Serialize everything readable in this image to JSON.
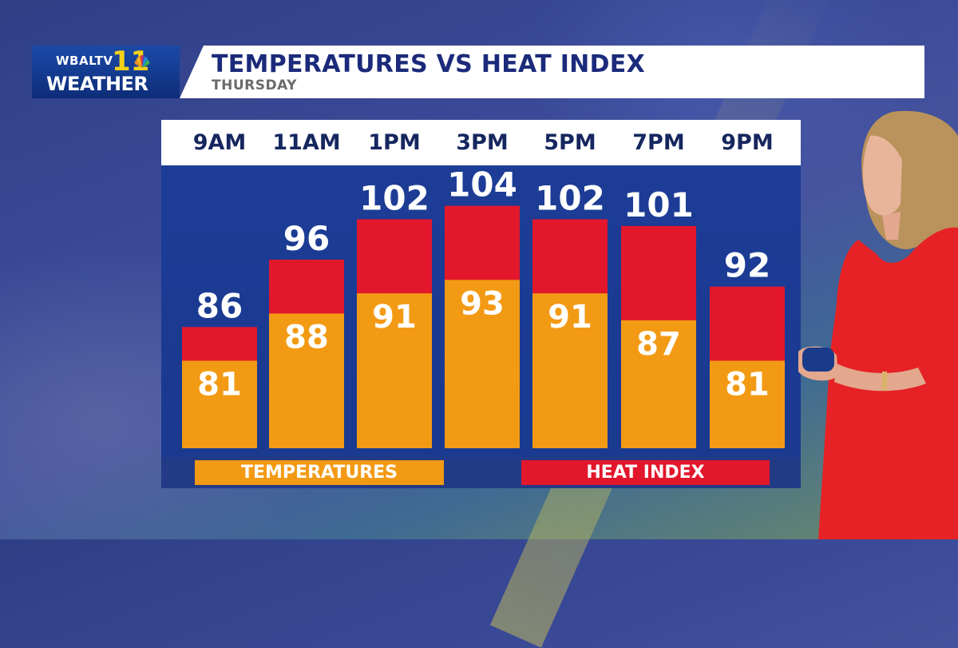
{
  "header": {
    "logo_line1": "WBALTV",
    "logo_number": "11",
    "logo_line2": "WEATHER",
    "title": "TEMPERATURES VS HEAT INDEX",
    "subtitle": "THURSDAY"
  },
  "legend": {
    "temperatures": "TEMPERATURES",
    "heat_index": "HEAT INDEX"
  },
  "colors": {
    "temperature": "#f39a14",
    "heat_index": "#e3172c",
    "plot_bg": "#1c3c96",
    "header_text": "#1b2a7a"
  },
  "chart_data": {
    "type": "bar",
    "title": "TEMPERATURES VS HEAT INDEX",
    "subtitle": "THURSDAY",
    "categories": [
      "9AM",
      "11AM",
      "1PM",
      "3PM",
      "5PM",
      "7PM",
      "9PM"
    ],
    "series": [
      {
        "name": "TEMPERATURES",
        "values": [
          81,
          88,
          91,
          93,
          91,
          87,
          81
        ]
      },
      {
        "name": "HEAT INDEX",
        "values": [
          86,
          96,
          102,
          104,
          102,
          101,
          92
        ]
      }
    ],
    "overlay": true,
    "ylim": [
      68,
      110
    ],
    "grid": false,
    "legend_position": "bottom"
  }
}
